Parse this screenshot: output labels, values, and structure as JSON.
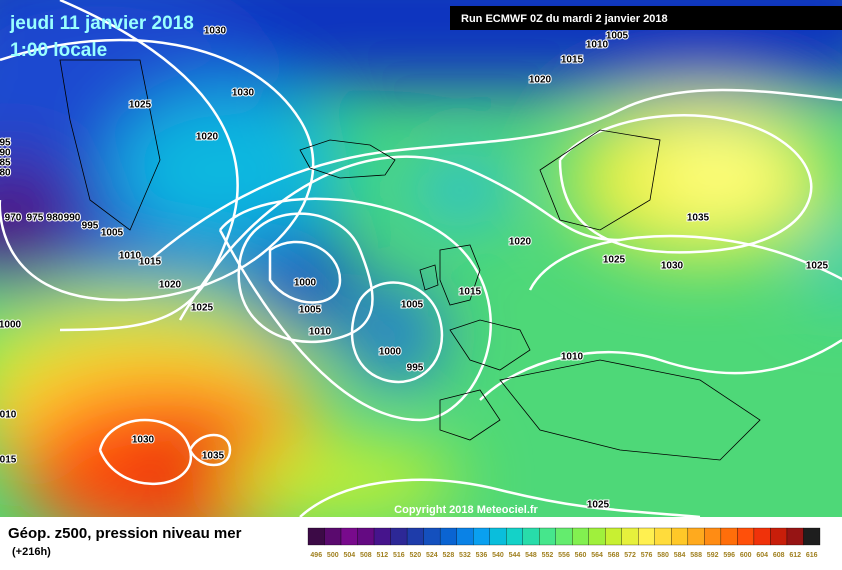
{
  "header": {
    "date": "jeudi 11 janvier 2018",
    "time": "1:00 locale",
    "run": "Run ECMWF 0Z du mardi 2 janvier 2018"
  },
  "copyright": "Copyright 2018 Meteociel.fr",
  "footer": {
    "title": "Géop. z500, pression niveau mer",
    "lead": "(+216h)"
  },
  "isobars": [
    "1030",
    "1030",
    "1025",
    "1020",
    "1020",
    "1015",
    "1010",
    "1005",
    "95",
    "90",
    "85",
    "80",
    "970",
    "975",
    "980",
    "990",
    "995",
    "1005",
    "1010",
    "1015",
    "1020",
    "1025",
    "1000",
    "010",
    "015",
    "1030",
    "1035",
    "1000",
    "1005",
    "1010",
    "1005",
    "1000",
    "995",
    "1015",
    "1020",
    "1025",
    "1030",
    "1035",
    "1025",
    "1010",
    "1025"
  ],
  "legend": {
    "labels": [
      "496",
      "500",
      "504",
      "508",
      "512",
      "516",
      "520",
      "524",
      "528",
      "532",
      "536",
      "540",
      "544",
      "548",
      "552",
      "556",
      "560",
      "564",
      "568",
      "572",
      "576",
      "580",
      "584",
      "588",
      "592",
      "596",
      "600",
      "604",
      "608",
      "612",
      "616"
    ],
    "colors": [
      "#3c0a46",
      "#5a0a6e",
      "#780a8c",
      "#640a82",
      "#46148c",
      "#2d2896",
      "#1e3caa",
      "#1450be",
      "#0a64d2",
      "#0a82e6",
      "#0aa0f0",
      "#0abedc",
      "#14d2c8",
      "#28dcaa",
      "#46e68c",
      "#64ec6e",
      "#82f050",
      "#a0f03c",
      "#c8f032",
      "#e6f03c",
      "#fff050",
      "#ffdc3c",
      "#ffc828",
      "#ffaa1e",
      "#ff8c14",
      "#ff6e0a",
      "#ff500a",
      "#f0320a",
      "#c81e0a",
      "#961414",
      "#1e1e1e"
    ]
  }
}
